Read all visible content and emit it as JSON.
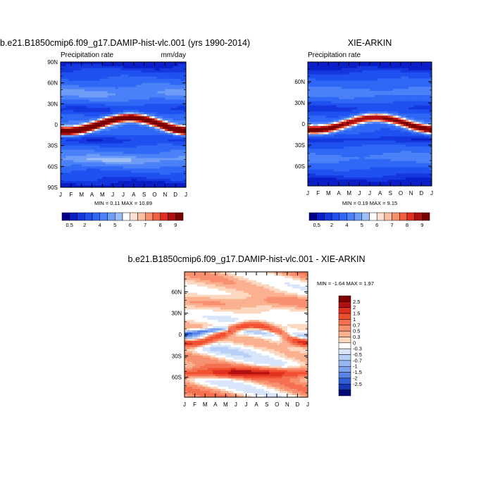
{
  "chart_data": [
    {
      "type": "heatmap",
      "title": "b.e21.B1850cmip6.f09_g17.DAMIP-hist-vlc.001 (yrs 1990-2014)",
      "subtitle_left": "Precipitation rate",
      "subtitle_right": "mm/day",
      "x_ticks": [
        "J",
        "F",
        "M",
        "A",
        "M",
        "J",
        "J",
        "A",
        "S",
        "O",
        "N",
        "D",
        "J"
      ],
      "y_ticks": [
        "90N",
        "60N",
        "30N",
        "0",
        "30S",
        "60S",
        "90S"
      ],
      "y_values": [
        90,
        60,
        30,
        0,
        -30,
        -60,
        -90
      ],
      "ylim": [
        -90,
        90
      ],
      "stats": "MIN =   0.11 MAX =   10.89",
      "colorbar": {
        "orientation": "horizontal",
        "labels": [
          "0.5",
          "2",
          "4",
          "5",
          "6",
          "7",
          "8",
          "9"
        ]
      },
      "levels": [
        0.5,
        1,
        2,
        3,
        4,
        4.5,
        5,
        5.5,
        6,
        6.5,
        7,
        7.5,
        8,
        9
      ]
    },
    {
      "type": "heatmap",
      "title": "XIE-ARKIN",
      "subtitle_left": "Precipitation rate",
      "x_ticks": [
        "J",
        "F",
        "M",
        "A",
        "M",
        "J",
        "J",
        "A",
        "S",
        "O",
        "N",
        "D",
        "J"
      ],
      "y_ticks": [
        "60N",
        "30N",
        "0",
        "30S",
        "60S"
      ],
      "y_values": [
        60,
        30,
        0,
        -30,
        -60
      ],
      "ylim": [
        -88,
        88
      ],
      "stats": "MIN =   0.19 MAX =   9.15",
      "colorbar": {
        "orientation": "horizontal",
        "labels": [
          "0.5",
          "2",
          "4",
          "5",
          "6",
          "7",
          "8",
          "9"
        ]
      },
      "levels": [
        0.5,
        1,
        2,
        3,
        4,
        4.5,
        5,
        5.5,
        6,
        6.5,
        7,
        7.5,
        8,
        9
      ]
    },
    {
      "type": "heatmap",
      "title": "b.e21.B1850cmip6.f09_g17.DAMIP-hist-vlc.001 - XIE-ARKIN",
      "x_ticks": [
        "J",
        "F",
        "M",
        "A",
        "M",
        "J",
        "J",
        "A",
        "S",
        "O",
        "N",
        "D",
        "J"
      ],
      "y_ticks": [
        "60N",
        "30N",
        "0",
        "30S",
        "60S"
      ],
      "y_values": [
        60,
        30,
        0,
        -30,
        -60
      ],
      "ylim": [
        -88,
        88
      ],
      "stats": "MIN =  -1.64 MAX =   1.97",
      "colorbar": {
        "orientation": "vertical",
        "labels": [
          "2.5",
          "2",
          "1.5",
          "1",
          "0.7",
          "0.5",
          "0.3",
          "0",
          "-0.3",
          "-0.5",
          "-0.7",
          "-1",
          "-1.5",
          "-2",
          "-2.5"
        ]
      }
    }
  ],
  "colors": {
    "precip_scale": [
      "#00008b",
      "#0a1ec8",
      "#1437e0",
      "#1f50f0",
      "#2e68f5",
      "#4a80f8",
      "#6e9cf7",
      "#9ebef5",
      "#ffffff",
      "#fde0d0",
      "#fbbfa5",
      "#f7906a",
      "#f06040",
      "#de3020",
      "#b01010",
      "#7a0000"
    ],
    "diff_scale": [
      "#7f0000",
      "#b01010",
      "#e03020",
      "#f05030",
      "#f57050",
      "#f89070",
      "#fbb090",
      "#fdd8c0",
      "#ffffff",
      "#d8e6fb",
      "#b8d0f8",
      "#98b8f4",
      "#7ea4ef",
      "#5a84e8",
      "#3060d8",
      "#1538b8",
      "#020a78"
    ]
  }
}
